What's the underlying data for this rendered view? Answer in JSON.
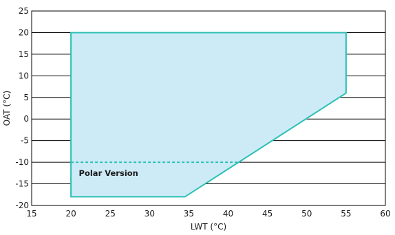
{
  "chart_data": {
    "type": "area",
    "title": "",
    "xlabel": "LWT (°C)",
    "ylabel": "OAT (°C)",
    "xlim": [
      15,
      60
    ],
    "ylim": [
      -20,
      25
    ],
    "x_ticks": [
      15,
      20,
      25,
      30,
      35,
      40,
      45,
      50,
      55,
      60
    ],
    "y_ticks": [
      -20,
      -15,
      -10,
      -5,
      0,
      5,
      10,
      15,
      20,
      25
    ],
    "grid": "horizontal",
    "colors": {
      "fill": "#cdeaf7",
      "outline": "#2bbfb3",
      "grid": "#000000"
    },
    "envelope": {
      "points": [
        [
          20,
          20
        ],
        [
          55,
          20
        ],
        [
          55,
          6
        ],
        [
          34.5,
          -18
        ],
        [
          20,
          -18
        ]
      ]
    },
    "polar_line": {
      "points": [
        [
          20,
          -10
        ],
        [
          41.3,
          -10
        ]
      ],
      "style": "dashed"
    },
    "annotations": [
      {
        "text": "Polar Version",
        "x": 21,
        "y": -12.5
      }
    ]
  }
}
